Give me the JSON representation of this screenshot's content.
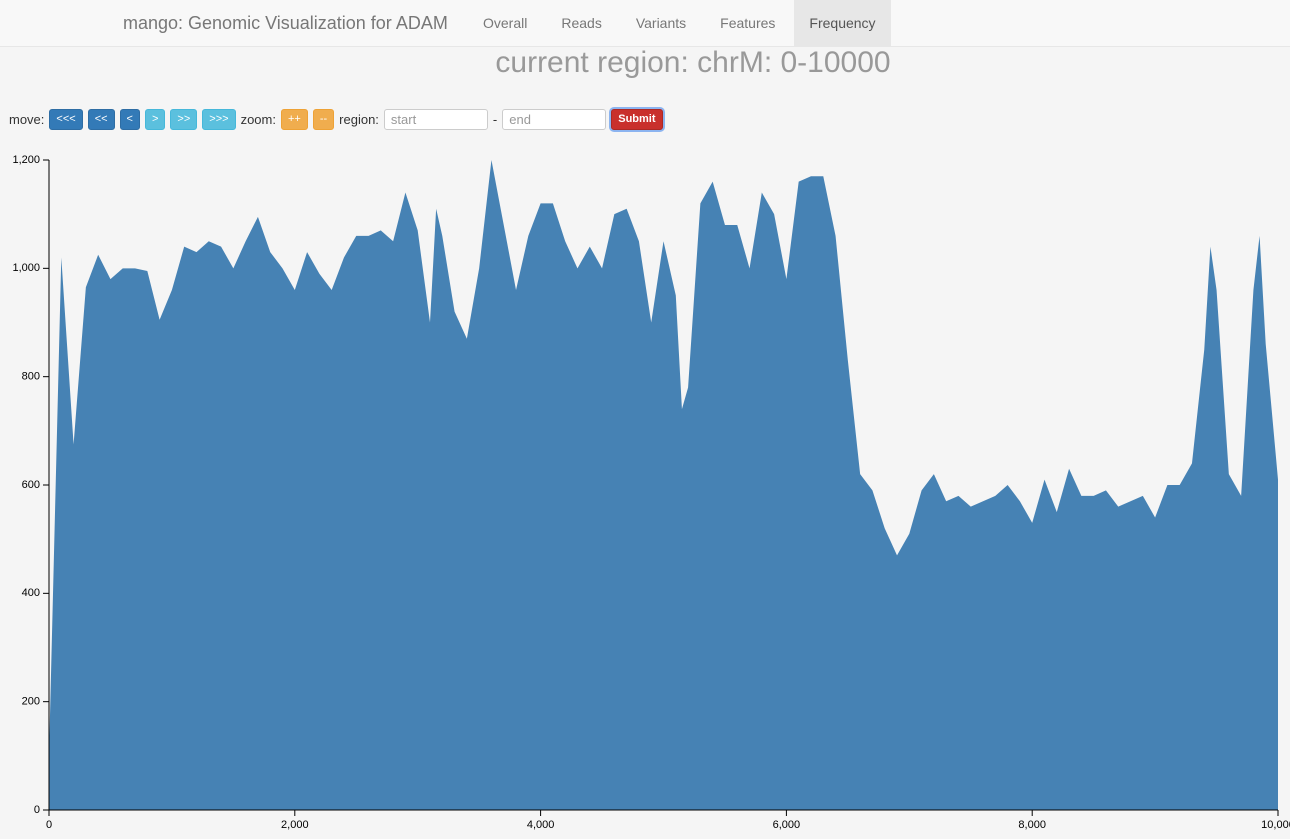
{
  "nav": {
    "brand": "mango: Genomic Visualization for ADAM",
    "items": [
      "Overall",
      "Reads",
      "Variants",
      "Features",
      "Frequency"
    ],
    "active": 4
  },
  "heading": "current region: chrM: 0-10000",
  "controls": {
    "move_label": "move:",
    "move_buttons": [
      "<<<",
      "<<",
      "<",
      ">",
      ">>",
      ">>>"
    ],
    "zoom_label": "zoom:",
    "zoom_buttons": [
      "++",
      "--"
    ],
    "region_label": "region:",
    "start_placeholder": "start",
    "separator": "-",
    "end_placeholder": "end",
    "submit": "Submit"
  },
  "chart_data": {
    "type": "area",
    "color": "#4682b4",
    "x": [
      0,
      100,
      200,
      300,
      400,
      500,
      600,
      700,
      800,
      900,
      1000,
      1100,
      1200,
      1300,
      1400,
      1500,
      1600,
      1700,
      1800,
      1900,
      2000,
      2100,
      2200,
      2300,
      2400,
      2500,
      2600,
      2700,
      2800,
      2900,
      3000,
      3100,
      3150,
      3200,
      3300,
      3400,
      3500,
      3600,
      3700,
      3800,
      3900,
      4000,
      4100,
      4200,
      4300,
      4400,
      4500,
      4600,
      4700,
      4800,
      4900,
      5000,
      5100,
      5150,
      5200,
      5300,
      5400,
      5500,
      5600,
      5700,
      5800,
      5900,
      6000,
      6100,
      6200,
      6300,
      6400,
      6500,
      6600,
      6700,
      6800,
      6900,
      7000,
      7100,
      7200,
      7300,
      7400,
      7500,
      7600,
      7700,
      7800,
      7900,
      8000,
      8100,
      8200,
      8300,
      8400,
      8500,
      8600,
      8700,
      8800,
      8900,
      9000,
      9100,
      9200,
      9300,
      9400,
      9450,
      9500,
      9600,
      9700,
      9800,
      9850,
      9900,
      10000
    ],
    "values": [
      100,
      1020,
      675,
      965,
      1025,
      980,
      1000,
      1000,
      995,
      905,
      960,
      1040,
      1030,
      1050,
      1040,
      1000,
      1050,
      1095,
      1030,
      1000,
      960,
      1030,
      990,
      960,
      1020,
      1060,
      1060,
      1070,
      1050,
      1140,
      1070,
      900,
      1110,
      1060,
      920,
      870,
      1000,
      1200,
      1080,
      960,
      1060,
      1120,
      1120,
      1050,
      1000,
      1040,
      1000,
      1100,
      1110,
      1050,
      900,
      1050,
      950,
      740,
      780,
      1120,
      1160,
      1080,
      1080,
      1000,
      1140,
      1100,
      980,
      1160,
      1170,
      1170,
      1060,
      830,
      620,
      590,
      520,
      470,
      510,
      590,
      620,
      570,
      580,
      560,
      570,
      580,
      600,
      570,
      530,
      610,
      550,
      630,
      580,
      580,
      590,
      560,
      570,
      580,
      540,
      600,
      600,
      640,
      850,
      1040,
      960,
      620,
      580,
      960,
      1060,
      860,
      610
    ],
    "xlim": [
      0,
      10000
    ],
    "ylim": [
      0,
      1200
    ],
    "xticks": [
      0,
      {
        "value": 2000,
        "label": "2,000"
      },
      {
        "value": 4000,
        "label": "4,000"
      },
      {
        "value": 6000,
        "label": "6,000"
      },
      {
        "value": 8000,
        "label": "8,000"
      },
      {
        "value": 10000,
        "label": "10,000"
      }
    ],
    "yticks": [
      0,
      200,
      400,
      600,
      800,
      {
        "value": 1000,
        "label": "1,000"
      },
      {
        "value": 1200,
        "label": "1,200"
      }
    ]
  }
}
